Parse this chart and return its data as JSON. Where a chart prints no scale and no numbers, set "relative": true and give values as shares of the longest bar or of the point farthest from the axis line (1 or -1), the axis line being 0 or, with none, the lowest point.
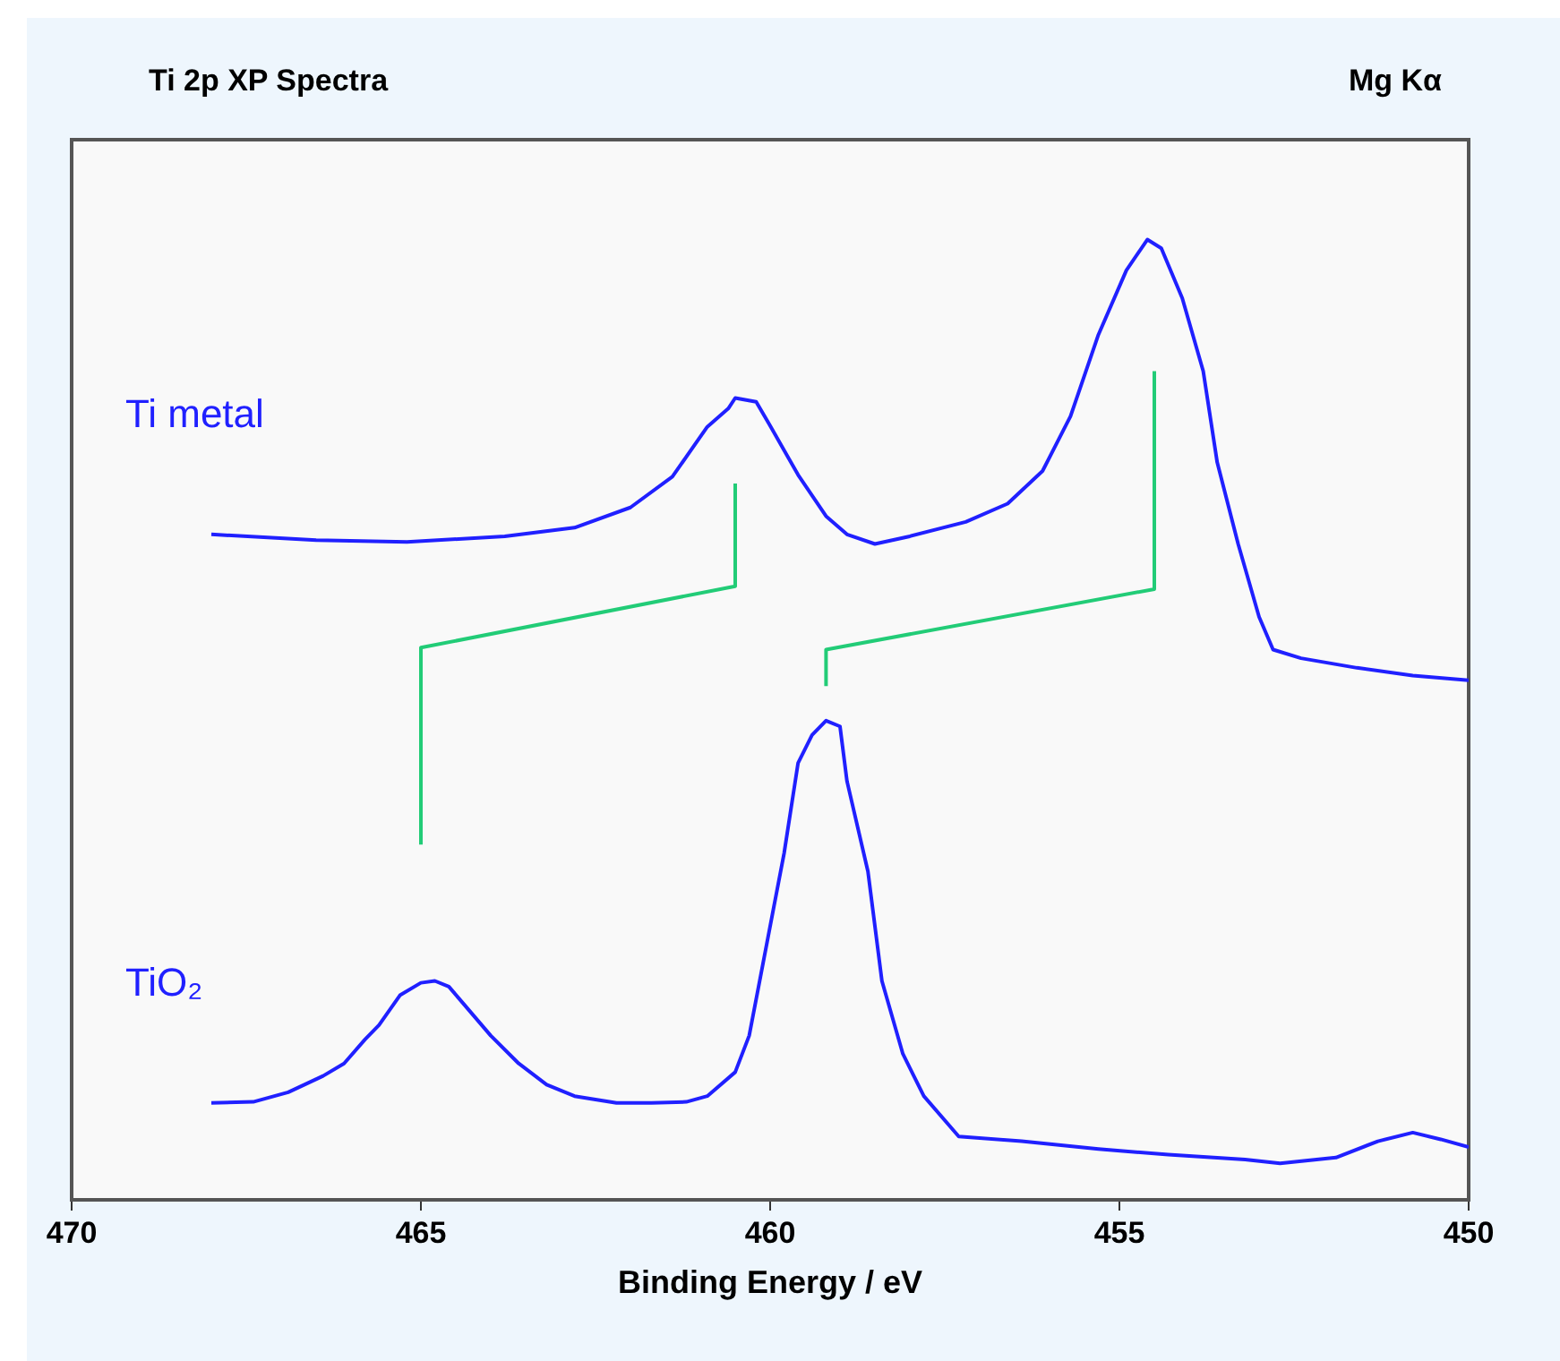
{
  "chart_data": {
    "type": "line",
    "title": "Ti 2p XP Spectra",
    "xlabel": "Binding Energy / eV",
    "annotations": [
      "Mg Kα"
    ],
    "relative": true,
    "xlim": [
      470,
      450
    ],
    "xticks": [
      470,
      465,
      460,
      455,
      450
    ],
    "grid": false,
    "legend": false,
    "marker": "none",
    "line_style": "solid",
    "series": [
      {
        "name": "Ti metal",
        "color": "#2020ff",
        "x": [
          468.0,
          466.5,
          465.2,
          463.8,
          462.8,
          462.0,
          461.4,
          460.9,
          460.6,
          460.5,
          460.2,
          460.0,
          459.6,
          459.2,
          458.9,
          458.5,
          458.0,
          457.2,
          456.6,
          456.1,
          455.7,
          455.3,
          454.9,
          454.6,
          454.4,
          454.1,
          453.8,
          453.6,
          453.3,
          453.0,
          452.8,
          452.4,
          451.6,
          450.8,
          450.0
        ],
        "values": [
          0.693,
          0.687,
          0.685,
          0.691,
          0.7,
          0.721,
          0.753,
          0.805,
          0.824,
          0.835,
          0.831,
          0.806,
          0.755,
          0.712,
          0.693,
          0.683,
          0.691,
          0.706,
          0.725,
          0.759,
          0.816,
          0.901,
          0.968,
          1.0,
          0.991,
          0.939,
          0.863,
          0.768,
          0.683,
          0.607,
          0.573,
          0.564,
          0.554,
          0.546,
          0.541
        ]
      },
      {
        "name": "TiO₂",
        "color": "#2020ff",
        "x": [
          468.0,
          467.4,
          466.9,
          466.4,
          466.1,
          465.8,
          465.6,
          465.3,
          465.0,
          464.8,
          464.6,
          464.4,
          464.0,
          463.6,
          463.2,
          462.8,
          462.2,
          461.7,
          461.2,
          460.9,
          460.5,
          460.3,
          460.1,
          459.8,
          459.6,
          459.4,
          459.2,
          459.0,
          458.9,
          458.6,
          458.4,
          458.1,
          457.8,
          457.3,
          456.4,
          455.3,
          454.3,
          453.2,
          452.7,
          451.9,
          451.3,
          450.8,
          450.4,
          450.0
        ],
        "values": [
          0.101,
          0.102,
          0.112,
          0.129,
          0.142,
          0.167,
          0.182,
          0.213,
          0.226,
          0.228,
          0.222,
          0.205,
          0.171,
          0.142,
          0.12,
          0.108,
          0.101,
          0.101,
          0.102,
          0.108,
          0.133,
          0.171,
          0.247,
          0.361,
          0.455,
          0.484,
          0.499,
          0.493,
          0.436,
          0.342,
          0.228,
          0.152,
          0.108,
          0.066,
          0.061,
          0.053,
          0.047,
          0.042,
          0.038,
          0.044,
          0.061,
          0.07,
          0.063,
          0.055
        ]
      },
      {
        "color": "#22cc77",
        "x": [
          465.0,
          465.0,
          460.5,
          460.5
        ],
        "values": [
          0.37,
          0.575,
          0.639,
          0.746
        ]
      },
      {
        "color": "#22cc77",
        "x": [
          459.2,
          459.2,
          454.5,
          454.5
        ],
        "values": [
          0.535,
          0.573,
          0.636,
          0.863
        ]
      }
    ]
  }
}
